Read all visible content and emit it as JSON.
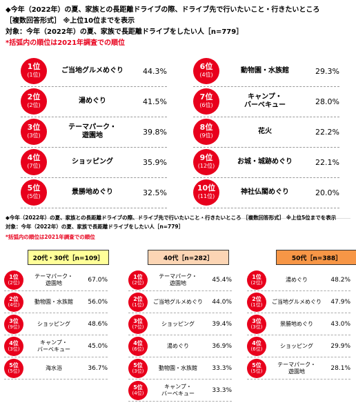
{
  "top": {
    "title": "◆今年（2022年）の夏、家族との長距離ドライブの際、ドライブ先で行いたいこと・行きたいところ",
    "subtitle": "［複数回答形式］ ※上位10位までを表示",
    "target": "対象：今年（2022年）の夏、家族で長距離ドライブをしたい人［n=779］",
    "note": "*括弧内の順位は2021年調査での順位",
    "left": [
      {
        "rank": "1位",
        "prev": "(1位)",
        "label": "ご当地グルメめぐり",
        "pct": "44.3%"
      },
      {
        "rank": "2位",
        "prev": "(2位)",
        "label": "湯めぐり",
        "pct": "41.5%"
      },
      {
        "rank": "3位",
        "prev": "(3位)",
        "label": "テーマパーク・\n遊園地",
        "pct": "39.8%"
      },
      {
        "rank": "4位",
        "prev": "(7位)",
        "label": "ショッピング",
        "pct": "35.9%"
      },
      {
        "rank": "5位",
        "prev": "(5位)",
        "label": "景勝地めぐり",
        "pct": "32.5%"
      }
    ],
    "right": [
      {
        "rank": "6位",
        "prev": "(4位)",
        "label": "動物園・水族館",
        "pct": "29.3%"
      },
      {
        "rank": "7位",
        "prev": "(6位)",
        "label": "キャンプ・\nバーベキュー",
        "pct": "28.0%"
      },
      {
        "rank": "8位",
        "prev": "(9位)",
        "label": "花火",
        "pct": "22.2%"
      },
      {
        "rank": "9位",
        "prev": "(12位)",
        "label": "お城・城跡めぐり",
        "pct": "22.1%"
      },
      {
        "rank": "10位",
        "prev": "(11位)",
        "label": "神社仏閣めぐり",
        "pct": "20.0%"
      }
    ]
  },
  "bottom": {
    "title": "◆今年（2022年）の夏、家族との長距離ドライブの際、ドライブ先で行いたいこと・行きたいところ ［複数回答形式］ ※上位5位までを表示",
    "target": "対象：今年（2022年）の夏、家族で長距離ドライブをしたい人［n=779］",
    "note": "*括弧内の順位は2021年調査での順位",
    "groups": [
      {
        "header": "20代・30代［n=109］",
        "color": "#ffff99",
        "rows": [
          {
            "rank": "1位",
            "prev": "(2位)",
            "label": "テーマパーク・\n遊園地",
            "pct": "67.0%"
          },
          {
            "rank": "2位",
            "prev": "(4位)",
            "label": "動物園・水族館",
            "pct": "56.0%"
          },
          {
            "rank": "3位",
            "prev": "(9位)",
            "label": "ショッピング",
            "pct": "48.6%"
          },
          {
            "rank": "4位",
            "prev": "(3位)",
            "label": "キャンプ・\nバーベキュー",
            "pct": "45.0%"
          },
          {
            "rank": "5位",
            "prev": "(5位)",
            "label": "海水浴",
            "pct": "36.7%"
          }
        ]
      },
      {
        "header": "40代［n=282］",
        "color": "#fcd5b4",
        "rows": [
          {
            "rank": "1位",
            "prev": "(2位)",
            "label": "テーマパーク・\n遊園地",
            "pct": "45.4%"
          },
          {
            "rank": "2位",
            "prev": "(1位)",
            "label": "ご当地グルメめぐり",
            "pct": "44.0%"
          },
          {
            "rank": "3位",
            "prev": "(7位)",
            "label": "ショッピング",
            "pct": "39.4%"
          },
          {
            "rank": "4位",
            "prev": "(6位)",
            "label": "湯めぐり",
            "pct": "36.9%"
          },
          {
            "rank": "5位",
            "prev": "(3位)",
            "label": "動物園・水族館",
            "pct": "33.3%"
          },
          {
            "rank": "5位",
            "prev": "(4位)",
            "label": "キャンプ・\nバーベキュー",
            "pct": "33.3%"
          }
        ]
      },
      {
        "header": "50代［n=388］",
        "color": "#f79646",
        "rows": [
          {
            "rank": "1位",
            "prev": "(2位)",
            "label": "湯めぐり",
            "pct": "48.2%"
          },
          {
            "rank": "2位",
            "prev": "(1位)",
            "label": "ご当地グルメめぐり",
            "pct": "47.9%"
          },
          {
            "rank": "3位",
            "prev": "(3位)",
            "label": "景勝地めぐり",
            "pct": "43.0%"
          },
          {
            "rank": "4位",
            "prev": "(6位)",
            "label": "ショッピング",
            "pct": "29.9%"
          },
          {
            "rank": "5位",
            "prev": "(5位)",
            "label": "テーマパーク・\n遊園地",
            "pct": "28.1%"
          }
        ]
      }
    ]
  }
}
